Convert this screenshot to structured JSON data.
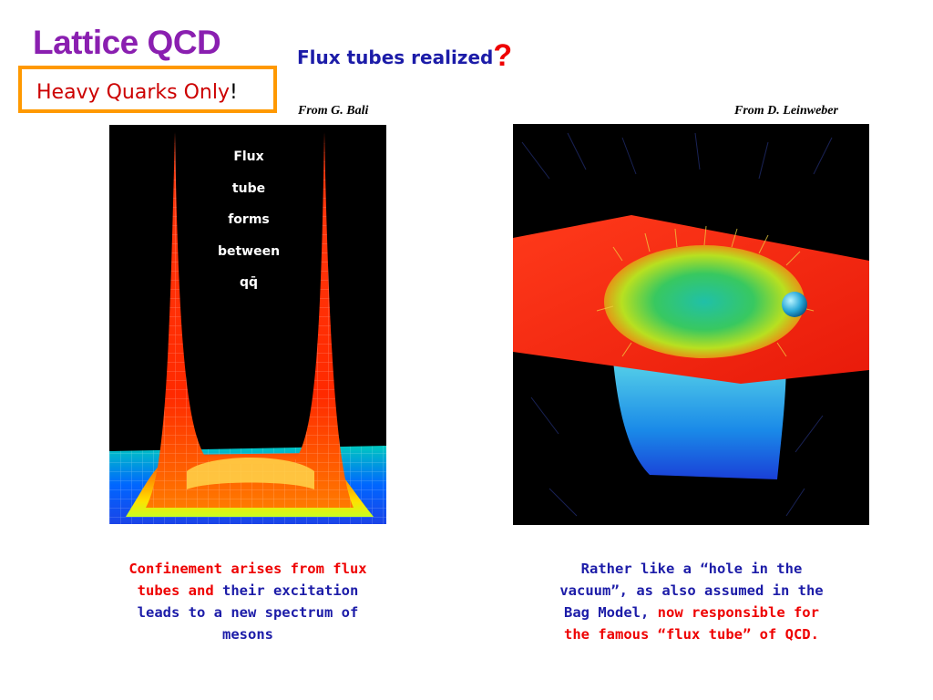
{
  "title": {
    "text": "Lattice QCD",
    "color": "#8a1fb0"
  },
  "callout": {
    "text": "Heavy Quarks Only",
    "end": "!",
    "color": "#cc0000",
    "border_color": "#ff9900"
  },
  "heading": {
    "text": "Flux tubes realized",
    "mark": "?",
    "color": "#1c1ca8",
    "mark_color": "#ee0000"
  },
  "credits": {
    "left": "From G. Bali",
    "right": "From D. Leinweber"
  },
  "left_figure": {
    "label_lines": [
      "Flux",
      "tube",
      "forms",
      "between",
      "qq̄"
    ]
  },
  "captions": {
    "left": [
      {
        "text": "Confinement arises from flux tubes and ",
        "color": "#ee0000"
      },
      {
        "text": "their excitation leads to a new spectrum of mesons",
        "color": "#1c1ca8"
      }
    ],
    "right": [
      {
        "text": "Rather like a “hole in the vacuum”, as also assumed in the Bag Model, ",
        "color": "#1c1ca8"
      },
      {
        "text": "now responsible for the famous “flux tube” of QCD.",
        "color": "#ee0000"
      }
    ]
  }
}
